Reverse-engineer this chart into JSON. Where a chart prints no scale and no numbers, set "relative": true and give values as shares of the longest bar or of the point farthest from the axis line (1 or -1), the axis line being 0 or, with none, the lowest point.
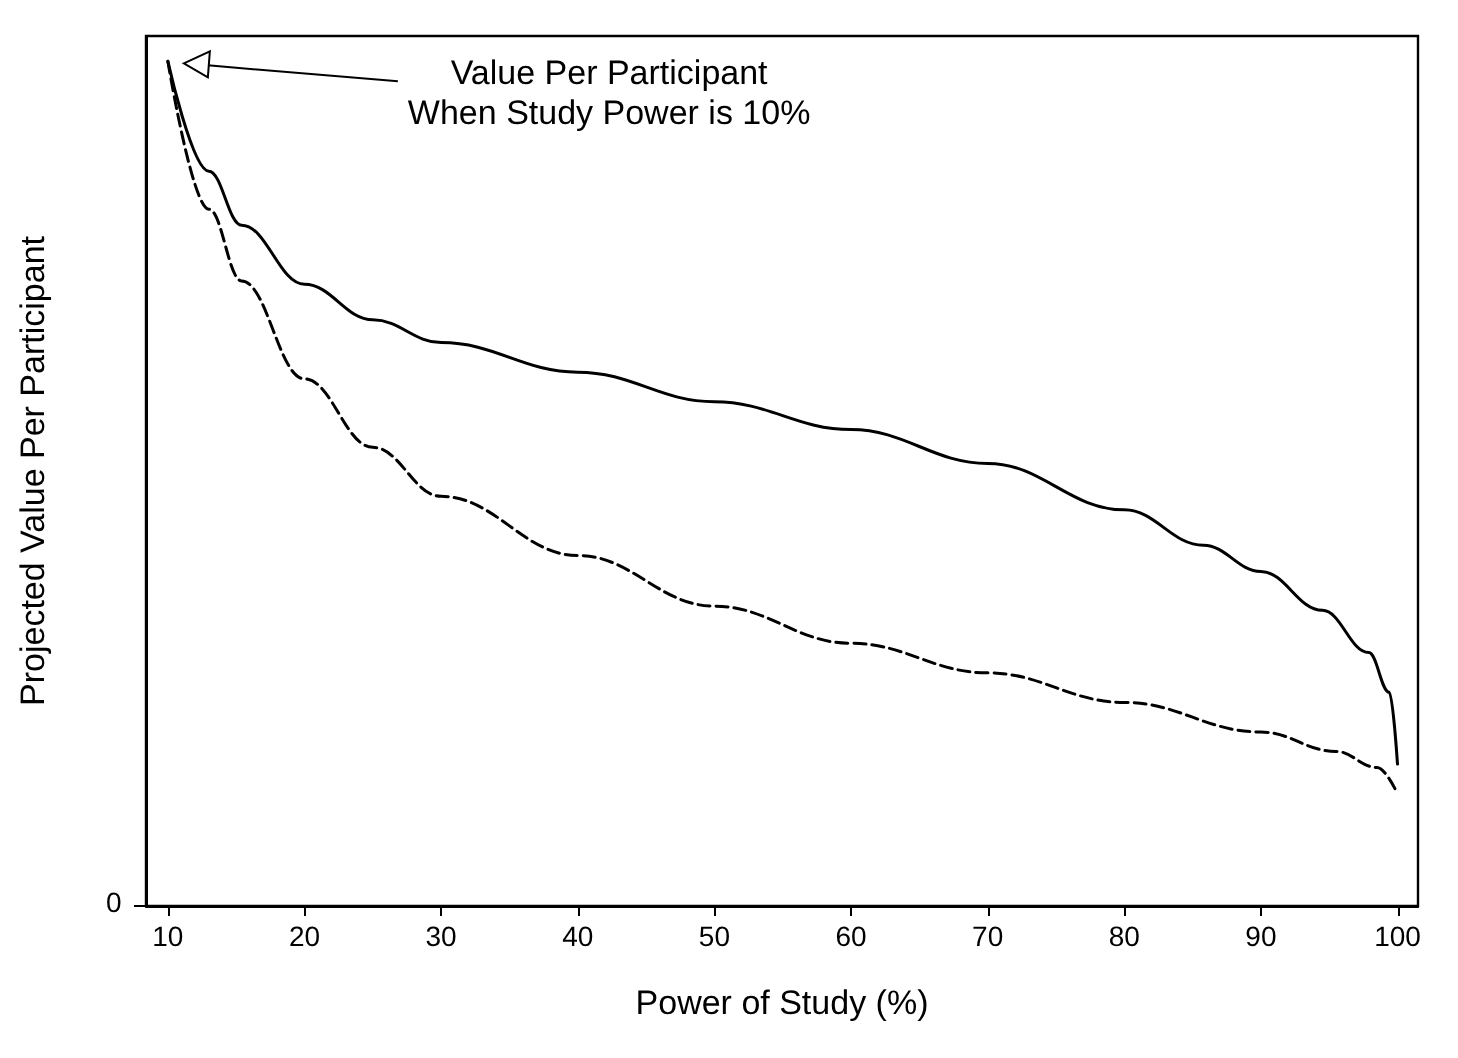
{
  "chart_data": {
    "type": "line",
    "relative": true,
    "xlabel": "Power of Study (%)",
    "ylabel": "Projected Value Per Participant",
    "xlim": [
      8.4,
      101.5
    ],
    "xticks": [
      10,
      20,
      30,
      40,
      50,
      60,
      70,
      80,
      90,
      100
    ],
    "marker": "none",
    "grid": false,
    "annotations": [
      "Value Per Participant\nWhen Study Power is 10%",
      "0"
    ],
    "series": [
      {
        "color": "#000000",
        "line_style": "solid",
        "x": [
          10,
          13,
          15.4,
          20,
          25,
          30,
          40,
          50,
          60,
          70,
          80,
          85.8,
          90,
          94.5,
          97.9,
          99.4,
          100
        ],
        "values": [
          1,
          0.87,
          0.806,
          0.736,
          0.694,
          0.667,
          0.632,
          0.597,
          0.564,
          0.524,
          0.469,
          0.427,
          0.396,
          0.35,
          0.3,
          0.253,
          0.168
        ]
      },
      {
        "color": "#000000",
        "line_style": "dashed",
        "x": [
          10,
          13,
          15.4,
          20,
          25,
          30,
          40,
          50,
          60,
          70,
          80,
          90,
          95.5,
          98.5,
          100
        ],
        "values": [
          1,
          0.825,
          0.74,
          0.624,
          0.543,
          0.485,
          0.415,
          0.355,
          0.311,
          0.276,
          0.241,
          0.206,
          0.183,
          0.164,
          0.133
        ]
      }
    ]
  }
}
